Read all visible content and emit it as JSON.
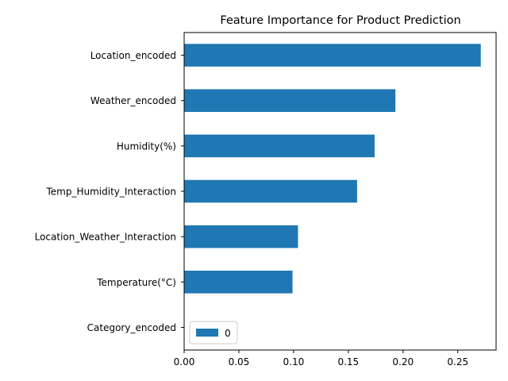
{
  "chart_data": {
    "type": "bar",
    "orientation": "horizontal",
    "title": "Feature Importance for Product Prediction",
    "xlabel": "",
    "ylabel": "",
    "categories": [
      "Location_encoded",
      "Weather_encoded",
      "Humidity(%)",
      "Temp_Humidity_Interaction",
      "Location_Weather_Interaction",
      "Temperature(°C)",
      "Category_encoded"
    ],
    "series": [
      {
        "name": "0",
        "values": [
          0.271,
          0.193,
          0.174,
          0.158,
          0.104,
          0.099,
          0.0
        ]
      }
    ],
    "xlim": [
      0.0,
      0.285
    ],
    "xticks": [
      0.0,
      0.05,
      0.1,
      0.15,
      0.2,
      0.25
    ],
    "xtick_labels": [
      "0.00",
      "0.05",
      "0.10",
      "0.15",
      "0.20",
      "0.25"
    ],
    "grid": false,
    "legend": {
      "placement": "lower-left",
      "entries": [
        "0"
      ]
    },
    "colors": {
      "bar": "#1f77b4",
      "axis": "#000000",
      "legend_border": "#cccccc"
    }
  }
}
